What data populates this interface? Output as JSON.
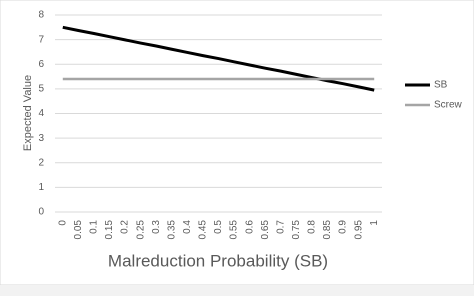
{
  "chart_data": {
    "type": "line",
    "x_label": "Malreduction Probability (SB)",
    "y_label": "Expected Value",
    "categories": [
      "0",
      "0.05",
      "0.1",
      "0.15",
      "0.2",
      "0.25",
      "0.3",
      "0.35",
      "0.4",
      "0.45",
      "0.5",
      "0.55",
      "0.6",
      "0.65",
      "0.7",
      "0.75",
      "0.8",
      "0.85",
      "0.9",
      "0.95",
      "1"
    ],
    "series": [
      {
        "name": "SB",
        "color": "#000000",
        "values": [
          7.5,
          7.37,
          7.25,
          7.12,
          6.99,
          6.86,
          6.74,
          6.61,
          6.48,
          6.35,
          6.23,
          6.1,
          5.97,
          5.84,
          5.72,
          5.59,
          5.46,
          5.33,
          5.21,
          5.08,
          4.95
        ]
      },
      {
        "name": "Screw",
        "color": "#a5a5a5",
        "values": [
          5.4,
          5.4,
          5.4,
          5.4,
          5.4,
          5.4,
          5.4,
          5.4,
          5.4,
          5.4,
          5.4,
          5.4,
          5.4,
          5.4,
          5.4,
          5.4,
          5.4,
          5.4,
          5.4,
          5.4,
          5.4
        ]
      }
    ],
    "ylim": [
      0,
      8
    ],
    "yticks": [
      0,
      1,
      2,
      3,
      4,
      5,
      6,
      7,
      8
    ],
    "grid": true,
    "legend": "right"
  }
}
